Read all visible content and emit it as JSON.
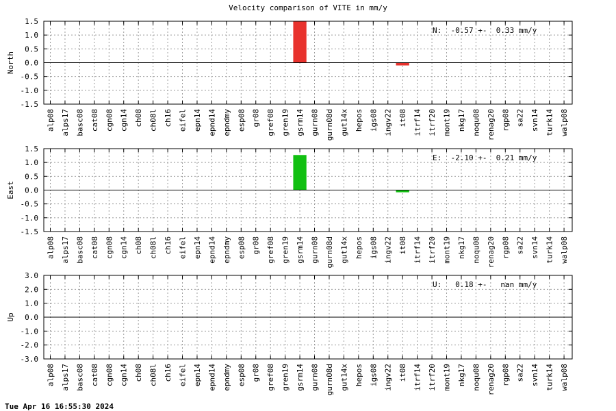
{
  "title": "Velocity comparison of VITE in mm/y",
  "timestamp": "Tue Apr 16 16:55:30 2024",
  "colors": {
    "north": "#e8322d",
    "east": "#11c011",
    "up": "#1f3fd6",
    "grid": "#9a9a9a",
    "axis": "#000000"
  },
  "chart_data": [
    {
      "type": "bar",
      "ylabel": "North",
      "ylim": [
        -1.5,
        1.5
      ],
      "yticks": [
        "1.5",
        "1.0",
        "0.5",
        "0.0",
        "-0.5",
        "-1.0",
        "-1.5"
      ],
      "grid": true,
      "legend_position": "top-right",
      "annotation": "N:  -0.57 +-  0.33 mm/y",
      "categories": [
        "alp08",
        "alps17",
        "basc08",
        "cat08",
        "cgn08",
        "cgn14",
        "ch08",
        "ch08l",
        "ch16",
        "eifel",
        "epn14",
        "epnd14",
        "epndmy",
        "esp08",
        "gr08",
        "gref08",
        "gren19",
        "gsrm14",
        "gurn08",
        "gurn08d",
        "gut14x",
        "hepos",
        "igs08",
        "ingv22",
        "it08",
        "itrf14",
        "itrf20",
        "mont19",
        "nkg17",
        "noqu08",
        "renag20",
        "rgp08",
        "sa22",
        "svn14",
        "turk14",
        "walp08"
      ],
      "values": [
        0,
        0,
        0,
        0,
        0,
        0,
        0,
        0,
        0,
        0,
        0,
        0,
        0,
        0,
        0,
        0,
        0,
        1.5,
        0,
        0,
        0,
        0,
        0,
        0,
        -0.1,
        0,
        0,
        0,
        0,
        0,
        0,
        0,
        0,
        0,
        0,
        0
      ]
    },
    {
      "type": "bar",
      "ylabel": "East",
      "ylim": [
        -1.5,
        1.5
      ],
      "yticks": [
        "1.5",
        "1.0",
        "0.5",
        "0.0",
        "-0.5",
        "-1.0",
        "-1.5"
      ],
      "grid": true,
      "legend_position": "top-right",
      "annotation": "E:  -2.10 +-  0.21 mm/y",
      "categories": [
        "alp08",
        "alps17",
        "basc08",
        "cat08",
        "cgn08",
        "cgn14",
        "ch08",
        "ch08l",
        "ch16",
        "eifel",
        "epn14",
        "epnd14",
        "epndmy",
        "esp08",
        "gr08",
        "gref08",
        "gren19",
        "gsrm14",
        "gurn08",
        "gurn08d",
        "gut14x",
        "hepos",
        "igs08",
        "ingv22",
        "it08",
        "itrf14",
        "itrf20",
        "mont19",
        "nkg17",
        "noqu08",
        "renag20",
        "rgp08",
        "sa22",
        "svn14",
        "turk14",
        "walp08"
      ],
      "values": [
        0,
        0,
        0,
        0,
        0,
        0,
        0,
        0,
        0,
        0,
        0,
        0,
        0,
        0,
        0,
        0,
        0,
        1.27,
        0,
        0,
        0,
        0,
        0,
        0,
        -0.08,
        0,
        0,
        0,
        0,
        0,
        0,
        0,
        0,
        0,
        0,
        0
      ]
    },
    {
      "type": "bar",
      "ylabel": "Up",
      "ylim": [
        -3.0,
        3.0
      ],
      "yticks": [
        "3.0",
        "2.0",
        "1.0",
        "0.0",
        "-1.0",
        "-2.0",
        "-3.0"
      ],
      "grid": true,
      "legend_position": "top-right",
      "annotation": "U:   0.18 +-   nan mm/y",
      "categories": [
        "alp08",
        "alps17",
        "basc08",
        "cat08",
        "cgn08",
        "cgn14",
        "ch08",
        "ch08l",
        "ch16",
        "eifel",
        "epn14",
        "epnd14",
        "epndmy",
        "esp08",
        "gr08",
        "gref08",
        "gren19",
        "gsrm14",
        "gurn08",
        "gurn08d",
        "gut14x",
        "hepos",
        "igs08",
        "ingv22",
        "it08",
        "itrf14",
        "itrf20",
        "mont19",
        "nkg17",
        "noqu08",
        "renag20",
        "rgp08",
        "sa22",
        "svn14",
        "turk14",
        "walp08"
      ],
      "values": [
        0,
        0,
        0,
        0,
        0,
        0,
        0,
        0,
        0,
        0,
        0,
        0,
        0,
        0,
        0,
        0,
        0,
        0,
        0,
        0,
        0,
        0,
        0,
        0,
        0,
        0,
        0,
        0,
        0,
        0,
        0,
        0,
        0,
        0,
        0,
        0
      ]
    }
  ]
}
